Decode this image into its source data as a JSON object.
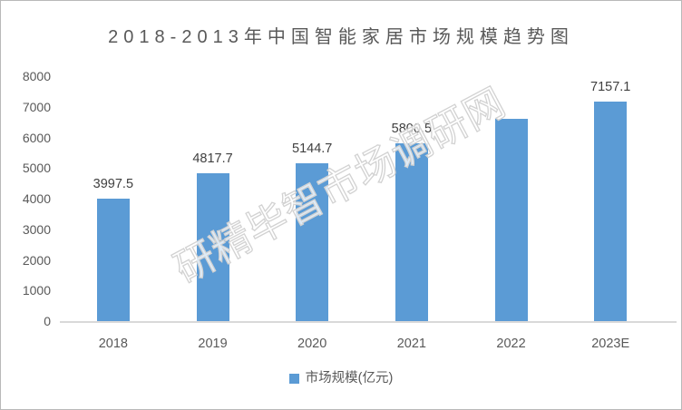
{
  "title": "2018-2013年中国智能家居市场规模趋势图",
  "watermark": "研精毕智市场调研网",
  "legend": {
    "label": "市场规模(亿元)"
  },
  "colors": {
    "bar": "#5b9bd5",
    "title_text": "#595959",
    "axis_text": "#595959",
    "data_label_text": "#404040",
    "baseline": "#d9d9d9",
    "watermark_outline": "#d2d2d2"
  },
  "y_axis": {
    "min": 0,
    "max": 8000,
    "step": 1000,
    "tick_labels": [
      "8000",
      "7000",
      "6000",
      "5000",
      "4000",
      "3000",
      "2000",
      "1000",
      "0"
    ]
  },
  "chart_data": {
    "type": "bar",
    "title": "2018-2013年中国智能家居市场规模趋势图",
    "categories": [
      "2018",
      "2019",
      "2020",
      "2021",
      "2022",
      "2023E"
    ],
    "series": [
      {
        "name": "市场规模(亿元)",
        "values": [
          3997.5,
          4817.7,
          5144.7,
          5800.5,
          6620,
          7157.1
        ],
        "data_labels": [
          "3997.5",
          "4817.7",
          "5144.7",
          "5800.5",
          "",
          "7157.1"
        ]
      }
    ],
    "xlabel": "",
    "ylabel": "",
    "ylim": [
      0,
      8000
    ],
    "grid": false,
    "legend_position": "bottom"
  }
}
